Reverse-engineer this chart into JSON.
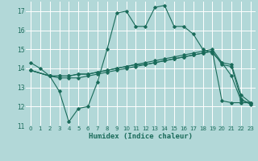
{
  "xlabel": "Humidex (Indice chaleur)",
  "background_color": "#b2d8d8",
  "grid_color": "#ffffff",
  "line_color": "#1a6b5a",
  "xlim": [
    -0.5,
    23.5
  ],
  "ylim": [
    11,
    17.5
  ],
  "yticks": [
    11,
    12,
    13,
    14,
    15,
    16,
    17
  ],
  "xticks": [
    0,
    1,
    2,
    3,
    4,
    5,
    6,
    7,
    8,
    9,
    10,
    11,
    12,
    13,
    14,
    15,
    16,
    17,
    18,
    19,
    20,
    21,
    22,
    23
  ],
  "line1_x": [
    0,
    1,
    2,
    3,
    4,
    5,
    6,
    7,
    8,
    9,
    10,
    11,
    12,
    13,
    14,
    15,
    16,
    17,
    18,
    19,
    20,
    21,
    22,
    23
  ],
  "line1_y": [
    14.3,
    14.0,
    13.6,
    12.8,
    11.2,
    11.9,
    12.0,
    13.3,
    15.0,
    16.9,
    17.0,
    16.2,
    16.2,
    17.2,
    17.3,
    16.2,
    16.2,
    15.8,
    15.0,
    14.8,
    14.3,
    13.6,
    12.3,
    12.2
  ],
  "line2_x": [
    0,
    2,
    3,
    4,
    5,
    6,
    7,
    8,
    9,
    10,
    11,
    12,
    13,
    14,
    15,
    16,
    17,
    18,
    19,
    20,
    21,
    22,
    23
  ],
  "line2_y": [
    13.9,
    13.6,
    13.6,
    13.6,
    13.7,
    13.7,
    13.8,
    13.9,
    14.0,
    14.1,
    14.2,
    14.3,
    14.4,
    14.5,
    14.6,
    14.7,
    14.8,
    14.9,
    15.0,
    14.3,
    14.2,
    12.6,
    12.2
  ],
  "line3_x": [
    0,
    2,
    3,
    4,
    5,
    6,
    7,
    8,
    9,
    10,
    11,
    12,
    13,
    14,
    15,
    16,
    17,
    18,
    19,
    20,
    21,
    22,
    23
  ],
  "line3_y": [
    13.9,
    13.6,
    13.5,
    13.5,
    13.5,
    13.6,
    13.7,
    13.8,
    13.9,
    14.0,
    14.1,
    14.2,
    14.3,
    14.4,
    14.5,
    14.6,
    14.7,
    14.8,
    14.9,
    14.2,
    14.1,
    12.4,
    12.1
  ],
  "line4_x": [
    0,
    2,
    3,
    4,
    5,
    6,
    7,
    8,
    9,
    10,
    11,
    12,
    13,
    14,
    15,
    16,
    17,
    18,
    19,
    20,
    21,
    22,
    23
  ],
  "line4_y": [
    13.9,
    13.6,
    13.6,
    13.6,
    13.7,
    13.7,
    13.8,
    13.9,
    14.0,
    14.1,
    14.2,
    14.2,
    14.3,
    14.4,
    14.5,
    14.6,
    14.7,
    14.8,
    14.9,
    12.3,
    12.2,
    12.2,
    12.2
  ]
}
